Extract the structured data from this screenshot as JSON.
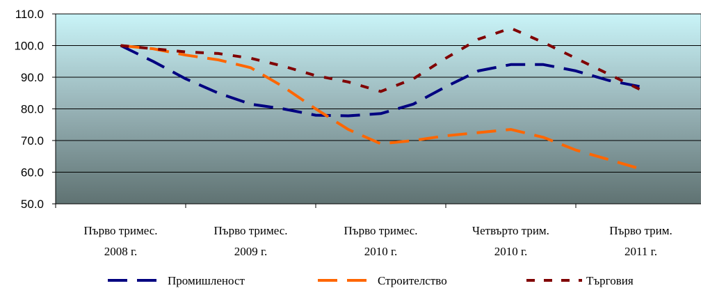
{
  "chart_data": {
    "type": "line",
    "title": "",
    "xlabel": "",
    "ylabel": "",
    "x": [
      [
        "Първо тримес.",
        "2008 г."
      ],
      [
        "Първо тримес.",
        "2009 г."
      ],
      [
        "Първо тримес.",
        "2010 г."
      ],
      [
        "Четвърто трим.",
        "2010 г."
      ],
      [
        "Първо трим.",
        "2011 г."
      ]
    ],
    "y_ticks": [
      "50.0",
      "60.0",
      "70.0",
      "80.0",
      "90.0",
      "100.0",
      "110.0"
    ],
    "ylim": [
      50,
      110
    ],
    "grid": true,
    "legend_position": "bottom",
    "series": [
      {
        "name": "Промишленост",
        "color": "#000080",
        "dash": "long",
        "points": [
          [
            0,
            100.0
          ],
          [
            0.25,
            95.0
          ],
          [
            0.5,
            89.5
          ],
          [
            0.75,
            85.0
          ],
          [
            1.0,
            81.5
          ],
          [
            1.25,
            80.0
          ],
          [
            1.5,
            78.0
          ],
          [
            1.75,
            77.8
          ],
          [
            2.0,
            78.5
          ],
          [
            2.25,
            81.5
          ],
          [
            2.5,
            87.0
          ],
          [
            2.75,
            92.0
          ],
          [
            3.0,
            94.0
          ],
          [
            3.25,
            94.0
          ],
          [
            3.5,
            92.0
          ],
          [
            3.75,
            89.0
          ],
          [
            4.0,
            87.0
          ]
        ]
      },
      {
        "name": "Строителство",
        "color": "#FF6600",
        "dash": "long",
        "points": [
          [
            0,
            100.0
          ],
          [
            0.25,
            99.0
          ],
          [
            0.5,
            97.0
          ],
          [
            0.75,
            95.5
          ],
          [
            1.0,
            93.0
          ],
          [
            1.25,
            87.0
          ],
          [
            1.5,
            80.0
          ],
          [
            1.75,
            73.5
          ],
          [
            2.0,
            69.0
          ],
          [
            2.25,
            70.0
          ],
          [
            2.5,
            71.5
          ],
          [
            2.75,
            72.5
          ],
          [
            3.0,
            73.5
          ],
          [
            3.25,
            71.0
          ],
          [
            3.5,
            67.0
          ],
          [
            3.75,
            64.0
          ],
          [
            4.0,
            61.0
          ]
        ]
      },
      {
        "name": "Търговия",
        "color": "#800000",
        "dash": "short",
        "points": [
          [
            0,
            100.0
          ],
          [
            0.25,
            99.0
          ],
          [
            0.5,
            98.0
          ],
          [
            0.75,
            97.5
          ],
          [
            1.0,
            96.0
          ],
          [
            1.25,
            93.5
          ],
          [
            1.5,
            90.5
          ],
          [
            1.75,
            88.5
          ],
          [
            2.0,
            85.5
          ],
          [
            2.25,
            89.5
          ],
          [
            2.5,
            96.0
          ],
          [
            2.75,
            102.0
          ],
          [
            3.0,
            105.5
          ],
          [
            3.25,
            101.0
          ],
          [
            3.5,
            96.0
          ],
          [
            3.75,
            91.0
          ],
          [
            4.0,
            86.0
          ]
        ]
      }
    ]
  }
}
